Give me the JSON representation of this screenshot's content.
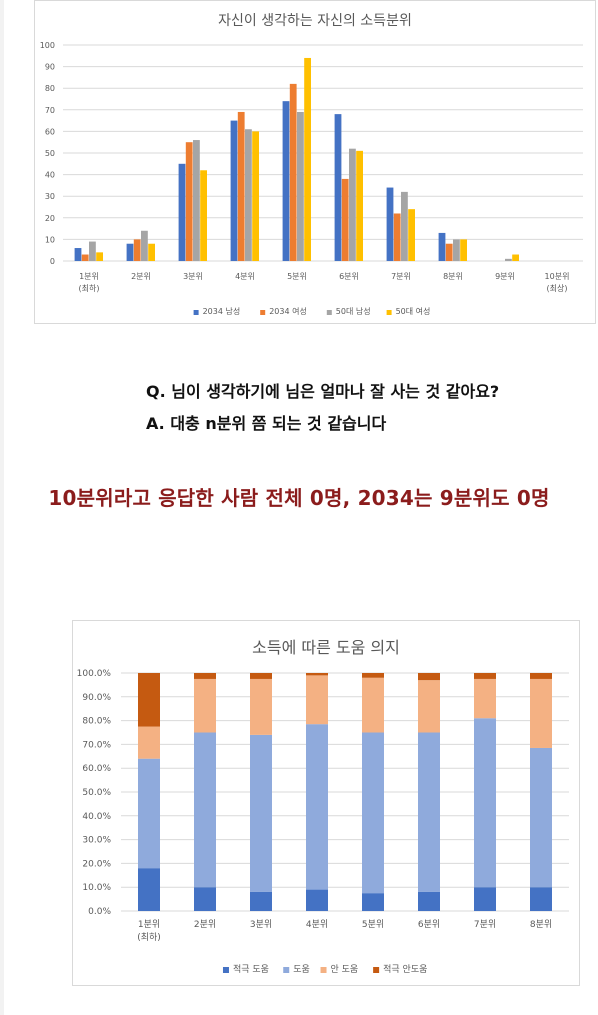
{
  "qa": {
    "question": "Q. 님이 생각하기에 님은 얼마나 잘 사는 것 같아요?",
    "answer": "A. 대충 n분위 쯤 되는 것 같습니다"
  },
  "headline": "10분위라고 응답한 사람 전체 0명, 2034는 9분위도 0명",
  "chart_data": [
    {
      "type": "bar",
      "title": "자신이 생각하는 자신의 소득분위",
      "categories": [
        "1분위\n(최하)",
        "2분위",
        "3분위",
        "4분위",
        "5분위",
        "6분위",
        "7분위",
        "8분위",
        "9분위",
        "10분위\n(최상)"
      ],
      "ylim": [
        0,
        100
      ],
      "yticks": [
        0,
        10,
        20,
        30,
        40,
        50,
        60,
        70,
        80,
        90,
        100
      ],
      "grid": true,
      "legend_position": "bottom",
      "series": [
        {
          "name": "2034 남성",
          "color": "#4472c4",
          "values": [
            6,
            8,
            45,
            65,
            74,
            68,
            34,
            13,
            0,
            0
          ]
        },
        {
          "name": "2034 여성",
          "color": "#ed7d31",
          "values": [
            3,
            10,
            55,
            69,
            82,
            38,
            22,
            8,
            0,
            0
          ]
        },
        {
          "name": "50대 남성",
          "color": "#a5a5a5",
          "values": [
            9,
            14,
            56,
            61,
            69,
            52,
            32,
            10,
            1,
            0
          ]
        },
        {
          "name": "50대 여성",
          "color": "#ffc000",
          "values": [
            4,
            8,
            42,
            60,
            94,
            51,
            24,
            10,
            3,
            0
          ]
        }
      ]
    },
    {
      "type": "bar",
      "stacked": "percent",
      "title": "소득에 따른 도움 의지",
      "categories": [
        "1분위\n(최하)",
        "2분위",
        "3분위",
        "4분위",
        "5분위",
        "6분위",
        "7분위",
        "8분위"
      ],
      "ylim": [
        0,
        100
      ],
      "yticks": [
        "0.0%",
        "10.0%",
        "20.0%",
        "30.0%",
        "40.0%",
        "50.0%",
        "60.0%",
        "70.0%",
        "80.0%",
        "90.0%",
        "100.0%"
      ],
      "grid": true,
      "legend_position": "bottom",
      "series": [
        {
          "name": "적극 도움",
          "color": "#4472c4",
          "values": [
            18,
            10,
            8,
            9,
            7.5,
            8,
            10,
            10
          ]
        },
        {
          "name": "도움",
          "color": "#8faadc",
          "values": [
            46,
            65,
            66,
            69.5,
            67.5,
            67,
            71,
            58.5
          ]
        },
        {
          "name": "안 도움",
          "color": "#f4b183",
          "values": [
            13.5,
            22.5,
            23.5,
            20.5,
            23,
            22,
            16.5,
            29
          ]
        },
        {
          "name": "적극 안도움",
          "color": "#c55a11",
          "values": [
            22.5,
            2.5,
            2.5,
            1,
            2,
            3,
            2.5,
            2.5
          ]
        }
      ]
    }
  ]
}
